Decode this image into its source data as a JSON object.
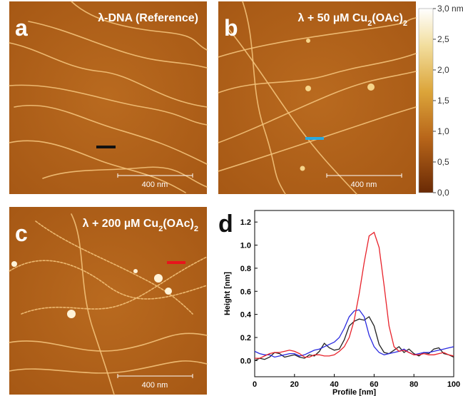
{
  "panels": [
    {
      "letter": "a",
      "title": [
        "λ-DNA (Reference)"
      ],
      "scalebar": "400 nm",
      "profile_color": "#111111"
    },
    {
      "letter": "b",
      "title": [
        "λ + 50 µM Cu",
        "2",
        "(OAc)",
        "2"
      ],
      "scalebar": "400 nm",
      "profile_color": "#29a9e0"
    },
    {
      "letter": "c",
      "title": [
        "λ + 200 µM Cu",
        "2",
        "(OAc)",
        "2"
      ],
      "scalebar": "400 nm",
      "profile_color": "#e8141c"
    }
  ],
  "colorbar": {
    "lim": [
      0,
      3
    ],
    "ticks": [
      {
        "value": 0,
        "label": "0,0"
      },
      {
        "value": 0.5,
        "label": "0,5"
      },
      {
        "value": 1,
        "label": "1,0"
      },
      {
        "value": 1.5,
        "label": "1,5"
      },
      {
        "value": 2,
        "label": "2,0"
      },
      {
        "value": 2.5,
        "label": "2,5"
      },
      {
        "value": 3,
        "label": "3,0 nm"
      }
    ]
  },
  "chart_data": {
    "type": "line",
    "panel_letter": "d",
    "x_label": "Profile [nm]",
    "y_label": "Height [nm]",
    "x": [
      0,
      2.5,
      5,
      7.5,
      10,
      12.5,
      15,
      17.5,
      20,
      22.5,
      25,
      27.5,
      30,
      32.5,
      35,
      37.5,
      40,
      42.5,
      45,
      47.5,
      50,
      52.5,
      55,
      57.5,
      60,
      62.5,
      65,
      67.5,
      70,
      72.5,
      75,
      77.5,
      80,
      82.5,
      85,
      87.5,
      90,
      92.5,
      95,
      97.5,
      100
    ],
    "series": [
      {
        "color": "#222222",
        "values": [
          0.0,
          0.02,
          0.01,
          0.03,
          0.07,
          0.06,
          0.03,
          0.04,
          0.05,
          0.03,
          0.02,
          0.05,
          0.04,
          0.08,
          0.15,
          0.11,
          0.09,
          0.1,
          0.18,
          0.3,
          0.34,
          0.36,
          0.35,
          0.38,
          0.3,
          0.14,
          0.07,
          0.06,
          0.09,
          0.12,
          0.07,
          0.1,
          0.06,
          0.04,
          0.07,
          0.06,
          0.1,
          0.11,
          0.06,
          0.05,
          0.03
        ]
      },
      {
        "color": "#2a2ae0",
        "values": [
          0.08,
          0.06,
          0.05,
          0.05,
          0.03,
          0.04,
          0.05,
          0.06,
          0.06,
          0.04,
          0.05,
          0.07,
          0.09,
          0.1,
          0.12,
          0.14,
          0.16,
          0.2,
          0.28,
          0.38,
          0.43,
          0.44,
          0.38,
          0.22,
          0.12,
          0.07,
          0.05,
          0.06,
          0.07,
          0.08,
          0.1,
          0.07,
          0.05,
          0.06,
          0.07,
          0.07,
          0.08,
          0.09,
          0.1,
          0.11,
          0.12
        ]
      },
      {
        "color": "#e8212a",
        "values": [
          0.02,
          0.02,
          0.04,
          0.06,
          0.07,
          0.07,
          0.08,
          0.09,
          0.08,
          0.06,
          0.03,
          0.03,
          0.05,
          0.05,
          0.04,
          0.04,
          0.05,
          0.08,
          0.12,
          0.2,
          0.35,
          0.58,
          0.85,
          1.08,
          1.11,
          0.98,
          0.65,
          0.3,
          0.12,
          0.08,
          0.09,
          0.07,
          0.05,
          0.05,
          0.06,
          0.05,
          0.05,
          0.06,
          0.07,
          0.05,
          0.04
        ]
      }
    ],
    "xlim": [
      0,
      100
    ],
    "xticks": [
      0,
      20,
      40,
      60,
      80,
      100
    ],
    "ylim": [
      -0.14,
      1.3
    ],
    "yticks": [
      {
        "value": 0,
        "label": "0.0"
      },
      0.2,
      0.4,
      0.6,
      0.8,
      {
        "value": 1,
        "label": "1.0"
      },
      1.2
    ]
  }
}
